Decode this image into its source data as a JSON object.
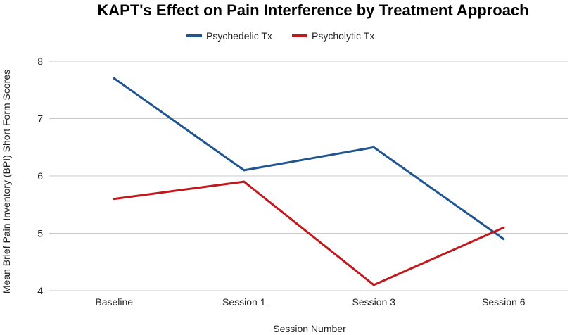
{
  "chart_data": {
    "type": "line",
    "title": "KAPT's Effect on Pain Interference by Treatment Approach",
    "xlabel": "Session Number",
    "ylabel": "Mean Brief Pain Inventory (BPI) Short Form Scores",
    "categories": [
      "Baseline",
      "Session 1",
      "Session 3",
      "Session 6"
    ],
    "ylim": [
      4,
      8
    ],
    "yticks": [
      4,
      5,
      6,
      7,
      8
    ],
    "grid": true,
    "legend_position": "top",
    "series": [
      {
        "name": "Psychedelic Tx",
        "color": "#1f5590",
        "values": [
          7.7,
          6.1,
          6.5,
          4.9
        ]
      },
      {
        "name": "Psycholytic Tx",
        "color": "#c0181d",
        "values": [
          5.6,
          5.9,
          4.1,
          5.1
        ]
      }
    ]
  }
}
